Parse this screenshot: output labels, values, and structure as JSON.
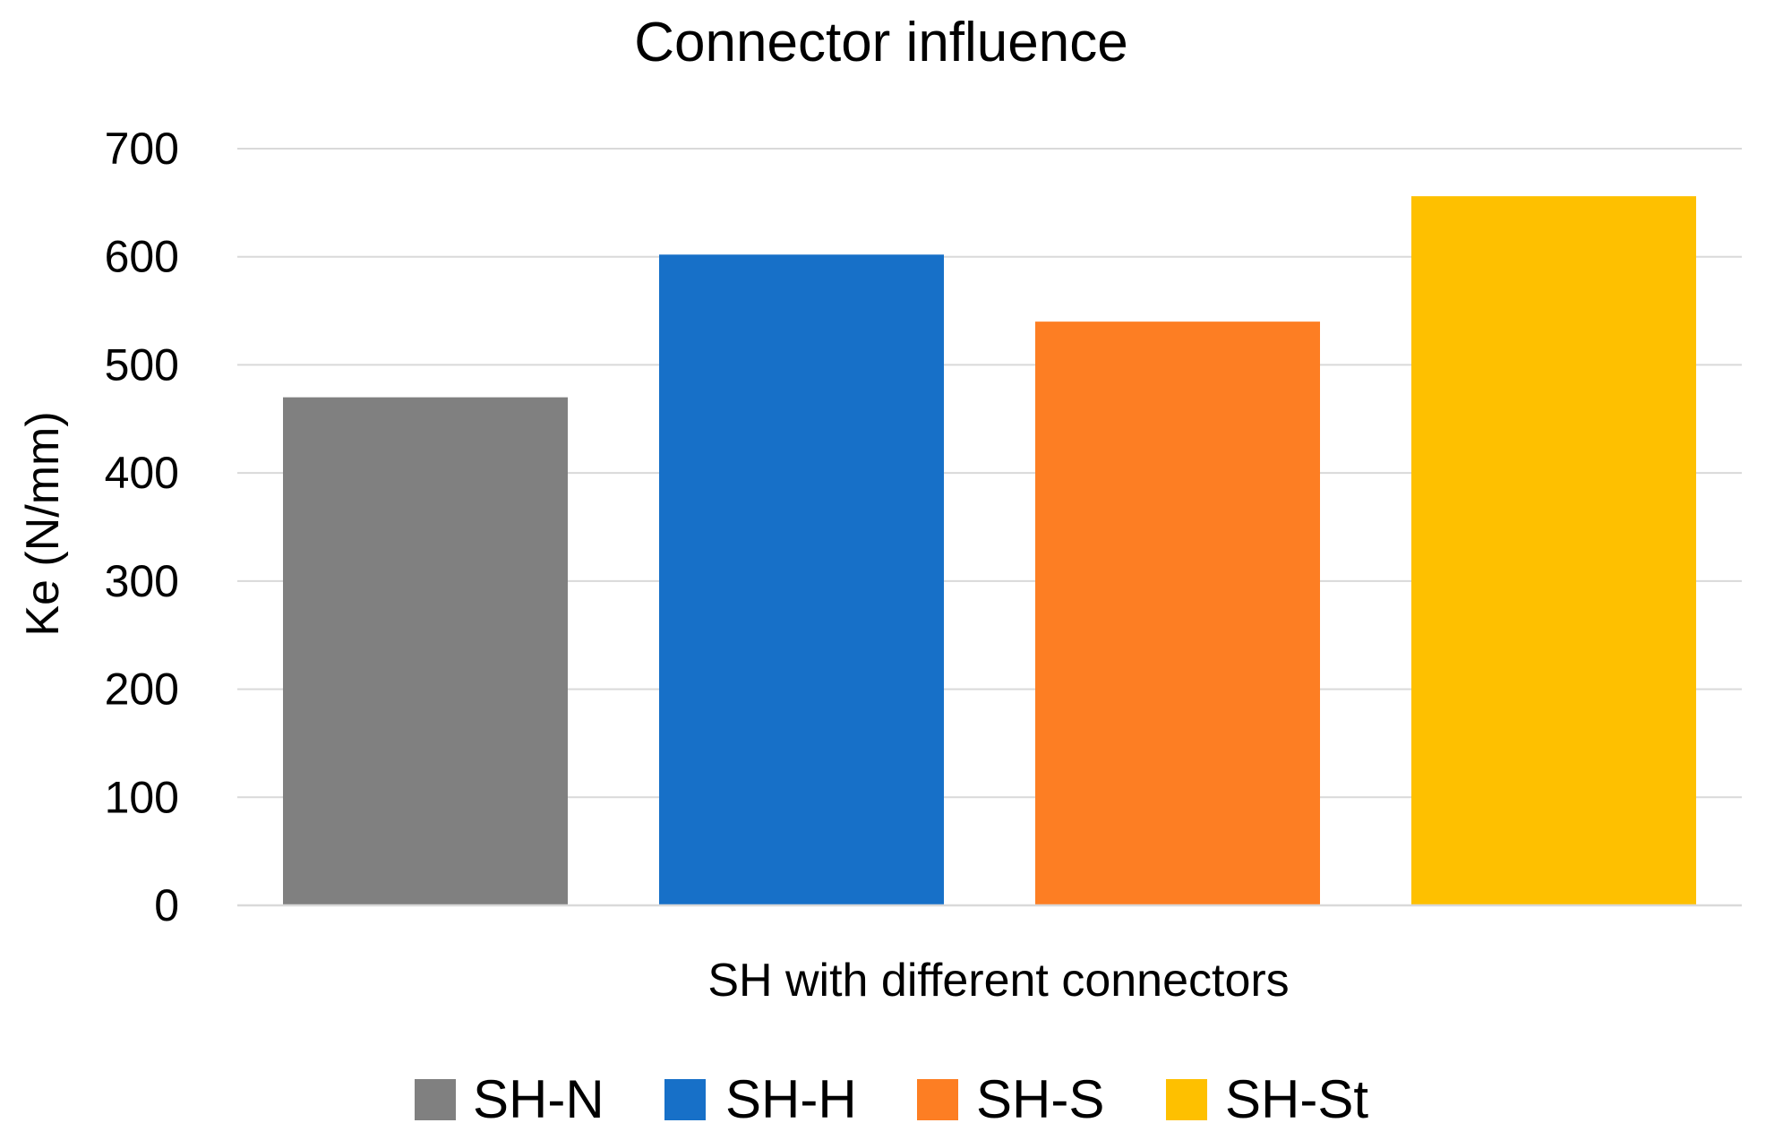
{
  "chart_data": {
    "type": "bar",
    "title": "Connector influence",
    "xlabel": "SH with different connectors",
    "ylabel": "Ke (N/mm)",
    "ylim": [
      0,
      700
    ],
    "yticks": [
      0,
      100,
      200,
      300,
      400,
      500,
      600,
      700
    ],
    "grid": true,
    "legend_position": "bottom",
    "series": [
      {
        "name": "SH-N",
        "value": 470,
        "color": "#808080"
      },
      {
        "name": "SH-H",
        "value": 602,
        "color": "#1770c8"
      },
      {
        "name": "SH-S",
        "value": 540,
        "color": "#fd7e23"
      },
      {
        "name": "SH-St",
        "value": 656,
        "color": "#fec000"
      }
    ]
  }
}
